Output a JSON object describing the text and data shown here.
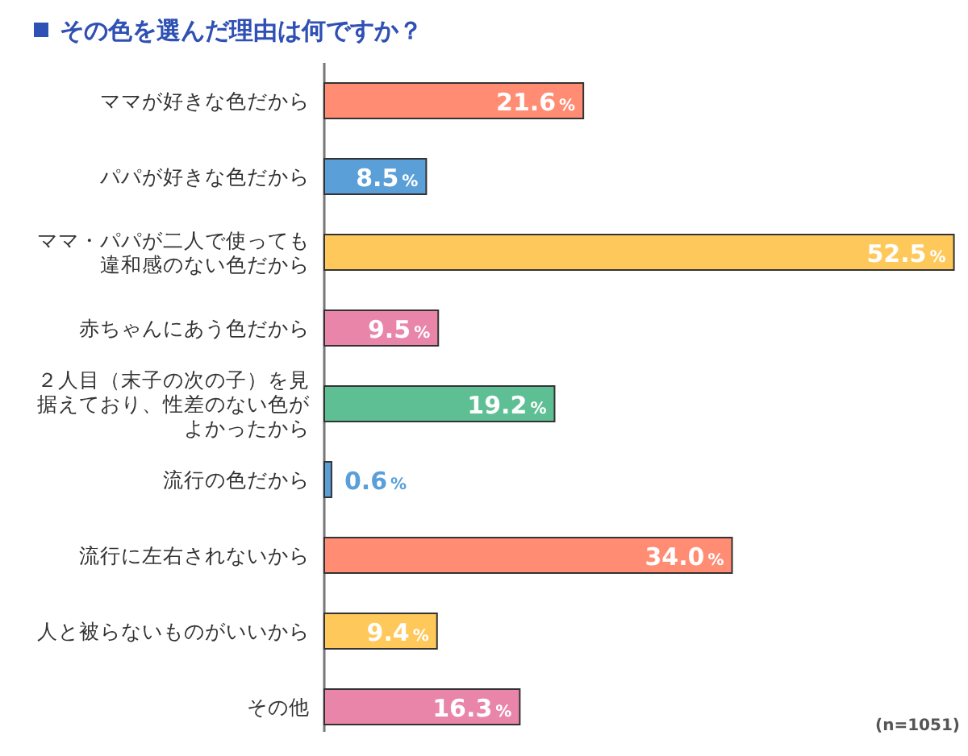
{
  "chart_data": {
    "type": "bar",
    "orientation": "horizontal",
    "title": "その色を選んだ理由は何ですか？",
    "categories": [
      "ママが好きな色だから",
      "パパが好きな色だから",
      "ママ・パパが二人で使っても違和感のない色だから",
      "赤ちゃんにあう色だから",
      "２人目（末子の次の子）を見据えており、性差のない色がよかったから",
      "流行の色だから",
      "流行に左右されないから",
      "人と被らないものがいいから",
      "その他"
    ],
    "values": [
      21.6,
      8.5,
      52.5,
      9.5,
      19.2,
      0.6,
      34.0,
      9.4,
      16.3
    ],
    "colors": [
      "#ff8c73",
      "#5a9fd8",
      "#ffc85a",
      "#e985a9",
      "#5fbf94",
      "#5a9fd8",
      "#ff8c73",
      "#ffc85a",
      "#e985a9"
    ],
    "value_labels": [
      "21.6%",
      "8.5%",
      "52.5%",
      "9.5%",
      "19.2%",
      "0.6%",
      "34.0%",
      "9.4%",
      "16.3%"
    ],
    "xlim": [
      0,
      53
    ],
    "annotations": [
      "(n=1051)"
    ]
  }
}
